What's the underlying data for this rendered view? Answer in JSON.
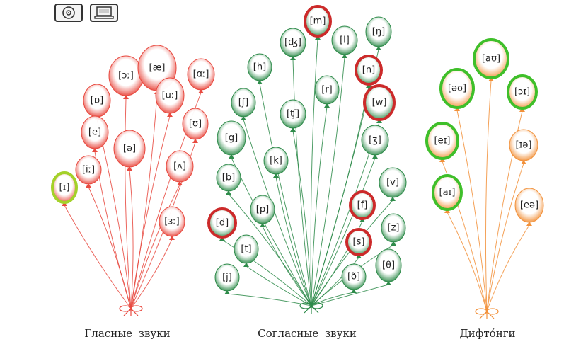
{
  "toolbar": {
    "cd_icon": "cd-disc-icon",
    "computer_icon": "computer-icon"
  },
  "labels": {
    "vowels": "Гласные  звуки",
    "consonants": "Согласные  звуки",
    "diphthongs": "Дифто́нги"
  },
  "colors": {
    "vowels": "#e8493f",
    "consonants": "#2e8b4a",
    "diphthongs": "#f2913a",
    "highlight_red": "#cc2a2a",
    "highlight_green": "#3fbf2a",
    "highlight_lime": "#a4d12a"
  },
  "groups": [
    {
      "id": "vowels",
      "balloons": [
        {
          "symbol": "[ɔː]",
          "highlight": "none"
        },
        {
          "symbol": "[æ]",
          "highlight": "none"
        },
        {
          "symbol": "[ɑː]",
          "highlight": "none"
        },
        {
          "symbol": "[ɒ]",
          "highlight": "none"
        },
        {
          "symbol": "[uː]",
          "highlight": "none"
        },
        {
          "symbol": "[ʊ]",
          "highlight": "none"
        },
        {
          "symbol": "[e]",
          "highlight": "none"
        },
        {
          "symbol": "[ə]",
          "highlight": "none"
        },
        {
          "symbol": "[ʌ]",
          "highlight": "none"
        },
        {
          "symbol": "[iː]",
          "highlight": "none"
        },
        {
          "symbol": "[ɪ]",
          "highlight": "lime"
        },
        {
          "symbol": "[ɜː]",
          "highlight": "none"
        }
      ]
    },
    {
      "id": "consonants",
      "balloons": [
        {
          "symbol": "[m]",
          "highlight": "red"
        },
        {
          "symbol": "[ŋ]",
          "highlight": "none"
        },
        {
          "symbol": "[ʤ]",
          "highlight": "none"
        },
        {
          "symbol": "[l]",
          "highlight": "none"
        },
        {
          "symbol": "[h]",
          "highlight": "none"
        },
        {
          "symbol": "[n]",
          "highlight": "red"
        },
        {
          "symbol": "[r]",
          "highlight": "none"
        },
        {
          "symbol": "[w]",
          "highlight": "red"
        },
        {
          "symbol": "[ʃ]",
          "highlight": "none"
        },
        {
          "symbol": "[ʧ]",
          "highlight": "none"
        },
        {
          "symbol": "[g]",
          "highlight": "none"
        },
        {
          "symbol": "[ʒ]",
          "highlight": "none"
        },
        {
          "symbol": "[k]",
          "highlight": "none"
        },
        {
          "symbol": "[b]",
          "highlight": "none"
        },
        {
          "symbol": "[v]",
          "highlight": "none"
        },
        {
          "symbol": "[f]",
          "highlight": "red"
        },
        {
          "symbol": "[p]",
          "highlight": "none"
        },
        {
          "symbol": "[d]",
          "highlight": "red"
        },
        {
          "symbol": "[z]",
          "highlight": "none"
        },
        {
          "symbol": "[s]",
          "highlight": "red"
        },
        {
          "symbol": "[t]",
          "highlight": "none"
        },
        {
          "symbol": "[θ]",
          "highlight": "none"
        },
        {
          "symbol": "[ð]",
          "highlight": "none"
        },
        {
          "symbol": "[j]",
          "highlight": "none"
        }
      ]
    },
    {
      "id": "diphthongs",
      "balloons": [
        {
          "symbol": "[aʊ]",
          "highlight": "green"
        },
        {
          "symbol": "[əʊ]",
          "highlight": "green"
        },
        {
          "symbol": "[ɔɪ]",
          "highlight": "green"
        },
        {
          "symbol": "[eɪ]",
          "highlight": "green"
        },
        {
          "symbol": "[ɪə]",
          "highlight": "none"
        },
        {
          "symbol": "[aɪ]",
          "highlight": "green"
        },
        {
          "symbol": "[eə]",
          "highlight": "none"
        }
      ]
    }
  ]
}
